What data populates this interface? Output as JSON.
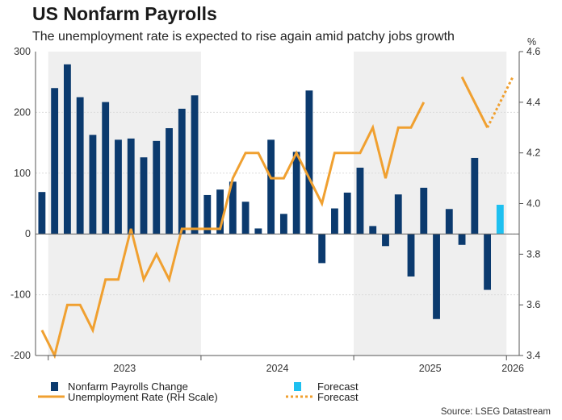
{
  "title": "US Nonfarm Payrolls",
  "subtitle": "The unemployment rate is expected to rise again amid patchy jobs growth",
  "source": "Source: LSEG Datastream",
  "chart_data": {
    "type": "bar",
    "left_axis": {
      "ylim": [
        -200,
        300
      ],
      "ticks": [
        "300",
        "200",
        "100",
        "0",
        "-100",
        "-200"
      ]
    },
    "right_axis": {
      "label": "%",
      "ylim": [
        3.4,
        4.6
      ],
      "ticks": [
        "4.6",
        "4.4",
        "4.2",
        "4.0",
        "3.8",
        "3.6",
        "3.4"
      ]
    },
    "x_labels": [
      "2023",
      "2024",
      "2025",
      "2026"
    ],
    "months": [
      "2022-12",
      "2023-01",
      "2023-02",
      "2023-03",
      "2023-04",
      "2023-05",
      "2023-06",
      "2023-07",
      "2023-08",
      "2023-09",
      "2023-10",
      "2023-11",
      "2023-12",
      "2024-01",
      "2024-02",
      "2024-03",
      "2024-04",
      "2024-05",
      "2024-06",
      "2024-07",
      "2024-08",
      "2024-09",
      "2024-10",
      "2024-11",
      "2024-12",
      "2025-01",
      "2025-02",
      "2025-03",
      "2025-04",
      "2025-05",
      "2025-06",
      "2025-07",
      "2025-08",
      "2025-09",
      "2025-10",
      "2025-11",
      "2025-12",
      "2026-01"
    ],
    "series": [
      {
        "name": "Nonfarm Payrolls Change",
        "kind": "bar",
        "color": "#0b3a6e",
        "values": [
          69,
          240,
          279,
          225,
          163,
          217,
          155,
          157,
          126,
          153,
          174,
          206,
          228,
          64,
          73,
          86,
          53,
          9,
          155,
          33,
          135,
          236,
          -48,
          42,
          68,
          109,
          13,
          -20,
          65,
          -70,
          76,
          -140,
          41,
          -18,
          125,
          -92,
          null,
          null
        ]
      },
      {
        "name": "Forecast",
        "kind": "bar",
        "color": "#1ec0f0",
        "values": [
          null,
          null,
          null,
          null,
          null,
          null,
          null,
          null,
          null,
          null,
          null,
          null,
          null,
          null,
          null,
          null,
          null,
          null,
          null,
          null,
          null,
          null,
          null,
          null,
          null,
          null,
          null,
          null,
          null,
          null,
          null,
          null,
          null,
          null,
          null,
          null,
          48,
          null
        ]
      },
      {
        "name": "Unemployment Rate (RH Scale)",
        "kind": "line",
        "color": "#f0a030",
        "values": [
          3.5,
          3.4,
          3.6,
          3.6,
          3.5,
          3.7,
          3.7,
          3.9,
          3.7,
          3.8,
          3.7,
          3.9,
          3.9,
          3.9,
          3.9,
          4.1,
          4.2,
          4.2,
          4.1,
          4.1,
          4.2,
          4.1,
          4.0,
          4.2,
          4.2,
          4.2,
          4.3,
          4.1,
          4.3,
          4.3,
          4.4,
          null,
          null,
          4.5,
          4.4,
          4.3,
          null,
          null
        ]
      },
      {
        "name": "Forecast",
        "kind": "line-dotted",
        "color": "#f0a030",
        "values": [
          null,
          null,
          null,
          null,
          null,
          null,
          null,
          null,
          null,
          null,
          null,
          null,
          null,
          null,
          null,
          null,
          null,
          null,
          null,
          null,
          null,
          null,
          null,
          null,
          null,
          null,
          null,
          null,
          null,
          null,
          null,
          null,
          null,
          null,
          null,
          4.3,
          4.4,
          4.5
        ]
      }
    ],
    "shaded_years": [
      "2023",
      "2025"
    ],
    "grid": true,
    "legend_placement": "bottom"
  },
  "colors": {
    "bar": "#0b3a6e",
    "forecast_bar": "#1ec0f0",
    "line": "#f0a030",
    "shade": "#efefef"
  }
}
